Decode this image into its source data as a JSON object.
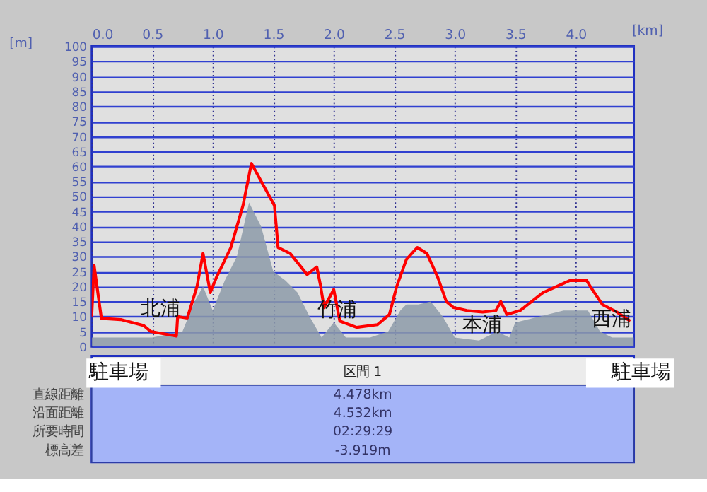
{
  "chart_data": {
    "type": "line",
    "xlabel": "[km]",
    "ylabel": "[m]",
    "xlim": [
      0,
      4.48
    ],
    "xticks": [
      {
        "value": 0,
        "label": "0.0"
      },
      0.5,
      {
        "value": 1,
        "label": "1.0"
      },
      1.5,
      {
        "value": 2,
        "label": "2.0"
      },
      2.5,
      {
        "value": 3,
        "label": "3.0"
      },
      3.5,
      {
        "value": 4,
        "label": "4.0"
      }
    ],
    "ylim": [
      0,
      100
    ],
    "yticks": [
      0,
      5,
      10,
      15,
      20,
      25,
      30,
      35,
      40,
      45,
      50,
      55,
      60,
      65,
      70,
      75,
      80,
      85,
      90,
      95,
      100
    ],
    "grid": true,
    "line_style": "solid",
    "marker": "none",
    "series": [
      {
        "type": "area",
        "color": "#8c9aa8",
        "x": [
          0,
          0.5,
          0.75,
          0.85,
          0.92,
          1.0,
          1.1,
          1.2,
          1.3,
          1.4,
          1.5,
          1.6,
          1.7,
          1.8,
          1.9,
          2.0,
          2.1,
          2.3,
          2.45,
          2.55,
          2.6,
          2.7,
          2.8,
          2.9,
          3.0,
          3.2,
          3.35,
          3.45,
          3.5,
          3.7,
          3.9,
          4.0,
          4.1,
          4.2,
          4.3,
          4.48
        ],
        "values": [
          3,
          3,
          5,
          15,
          20,
          12,
          22,
          30,
          48,
          40,
          25,
          22,
          18,
          10,
          3,
          8,
          3,
          3,
          5,
          12,
          14,
          14,
          15,
          10,
          3,
          2,
          5,
          3,
          8,
          10,
          12,
          12,
          12,
          5,
          3,
          3
        ]
      },
      {
        "color": "#ff0000",
        "x": [
          0,
          0.02,
          0.08,
          0.24,
          0.43,
          0.49,
          0.7,
          0.71,
          0.79,
          0.87,
          0.92,
          0.98,
          1.03,
          1.15,
          1.25,
          1.32,
          1.51,
          1.54,
          1.64,
          1.78,
          1.86,
          1.89,
          1.92,
          2.0,
          2.05,
          2.19,
          2.36,
          2.46,
          2.52,
          2.6,
          2.69,
          2.77,
          2.86,
          2.93,
          2.99,
          3.1,
          3.23,
          3.34,
          3.38,
          3.43,
          3.54,
          3.73,
          3.95,
          4.09,
          4.12,
          4.22,
          4.34,
          4.45
        ],
        "values": [
          10,
          27,
          9.4,
          9,
          7,
          5,
          3.5,
          10,
          9.5,
          20,
          31,
          18,
          23,
          33,
          47,
          61,
          47,
          33,
          31,
          24,
          26.5,
          20.5,
          13,
          19,
          8.5,
          6.4,
          7.3,
          10.7,
          20,
          29,
          33,
          31,
          23,
          15,
          13,
          12,
          11.5,
          12,
          15,
          10.7,
          12,
          18,
          22,
          22,
          20,
          14,
          11.5,
          8.5
        ]
      }
    ],
    "annotations": [
      "北浦",
      "竹浦",
      "本浦",
      "西浦",
      "駐車場",
      "駐車場",
      "区間 1",
      "直線距離",
      "4.478km",
      "沿面距離",
      "4.532km",
      "所要時間",
      "02:29:29",
      "標高差",
      "-3.919m"
    ]
  }
}
